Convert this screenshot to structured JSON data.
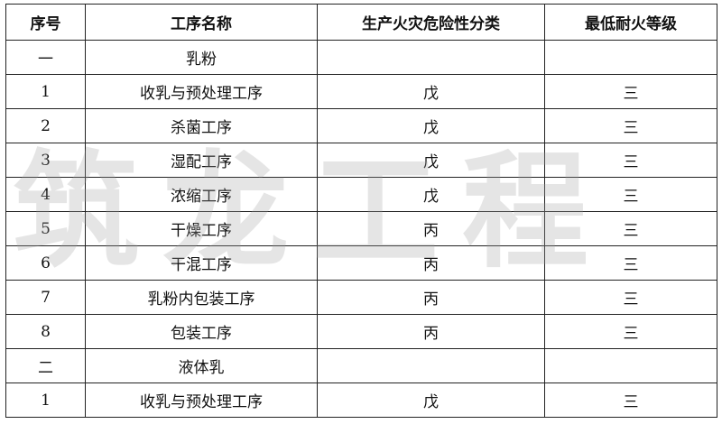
{
  "table": {
    "headers": [
      "序号",
      "工序名称",
      "生产火灾危险性分类",
      "最低耐火等级"
    ],
    "rows": [
      [
        "一",
        "乳粉",
        "",
        ""
      ],
      [
        "1",
        "收乳与预处理工序",
        "戊",
        "三"
      ],
      [
        "2",
        "杀菌工序",
        "戊",
        "三"
      ],
      [
        "3",
        "湿配工序",
        "戊",
        "三"
      ],
      [
        "4",
        "浓缩工序",
        "戊",
        "三"
      ],
      [
        "5",
        "干燥工序",
        "丙",
        "三"
      ],
      [
        "6",
        "干混工序",
        "丙",
        "三"
      ],
      [
        "7",
        "乳粉内包装工序",
        "丙",
        "三"
      ],
      [
        "8",
        "包装工序",
        "丙",
        "三"
      ],
      [
        "二",
        "液体乳",
        "",
        ""
      ],
      [
        "1",
        "收乳与预处理工序",
        "戊",
        "三"
      ]
    ]
  },
  "watermark": "筑龙工程"
}
